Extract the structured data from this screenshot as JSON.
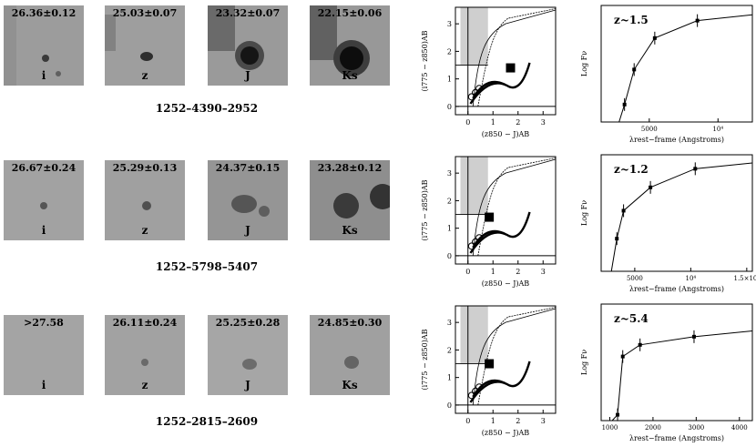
{
  "rows": [
    {
      "object_id": "1252–4390–2952",
      "stamps": [
        {
          "band": "i",
          "mag": "26.36±0.12"
        },
        {
          "band": "z",
          "mag": "25.03±0.07"
        },
        {
          "band": "J",
          "mag": "23.32±0.07"
        },
        {
          "band": "Ks",
          "mag": "22.15±0.06"
        }
      ],
      "cc": {
        "ylabel": "(i775 − z850)AB",
        "xlabel": "(z850 − J)AB",
        "xticks": [
          "0",
          "1",
          "2",
          "3"
        ],
        "yticks": [
          "0",
          "1",
          "2",
          "3"
        ]
      },
      "sed": {
        "label": "z~1.5",
        "ylabel": "Log Fν",
        "xlabel": "λrest−frame (Angstroms)",
        "xticks": [
          "5000",
          "10⁴"
        ]
      }
    },
    {
      "object_id": "1252–5798–5407",
      "stamps": [
        {
          "band": "i",
          "mag": "26.67±0.24"
        },
        {
          "band": "z",
          "mag": "25.29±0.13"
        },
        {
          "band": "J",
          "mag": "24.37±0.15"
        },
        {
          "band": "Ks",
          "mag": "23.28±0.12"
        }
      ],
      "cc": {
        "ylabel": "(i775 − z850)AB",
        "xlabel": "(z850 − J)AB",
        "xticks": [
          "0",
          "1",
          "2",
          "3"
        ],
        "yticks": [
          "0",
          "1",
          "2",
          "3"
        ]
      },
      "sed": {
        "label": "z~1.2",
        "ylabel": "Log Fν",
        "xlabel": "λrest−frame (Angstroms)",
        "xticks": [
          "5000",
          "10⁴",
          "1.5×10⁴"
        ]
      }
    },
    {
      "object_id": "1252–2815–2609",
      "stamps": [
        {
          "band": "i",
          "mag": ">27.58"
        },
        {
          "band": "z",
          "mag": "26.11±0.24"
        },
        {
          "band": "J",
          "mag": "25.25±0.28"
        },
        {
          "band": "Ks",
          "mag": "24.85±0.30"
        }
      ],
      "cc": {
        "ylabel": "(i775 − z850)AB",
        "xlabel": "(z850 − J)AB",
        "xticks": [
          "0",
          "1",
          "2",
          "3"
        ],
        "yticks": [
          "0",
          "1",
          "2",
          "3"
        ]
      },
      "sed": {
        "label": "z~5.4",
        "ylabel": "Log Fν",
        "xlabel": "λrest−frame (Angstroms)",
        "xticks": [
          "1000",
          "2000",
          "3000",
          "4000"
        ]
      }
    }
  ],
  "chart_data": [
    {
      "type": "scatter",
      "title": "",
      "xlabel": "(z850 − J)AB",
      "ylabel": "(i775 − z850)AB",
      "xlim": [
        -0.5,
        3.5
      ],
      "ylim": [
        -0.3,
        3.6
      ],
      "object": [
        1.7,
        1.4
      ]
    },
    {
      "type": "scatter",
      "title": "",
      "xlabel": "(z850 − J)AB",
      "ylabel": "(i775 − z850)AB",
      "xlim": [
        -0.5,
        3.5
      ],
      "ylim": [
        -0.3,
        3.6
      ],
      "object": [
        0.85,
        1.4
      ]
    },
    {
      "type": "scatter",
      "title": "",
      "xlabel": "(z850 − J)AB",
      "ylabel": "(i775 − z850)AB",
      "xlim": [
        -0.5,
        3.5
      ],
      "ylim": [
        -0.3,
        3.6
      ],
      "object": [
        0.85,
        1.5
      ]
    },
    {
      "type": "line",
      "annotation": "z~1.5",
      "xlabel": "λrest−frame (Angstroms)",
      "ylabel": "Log Fν",
      "xlim": [
        1500,
        12500
      ],
      "points": [
        [
          3200,
          0.15
        ],
        [
          3900,
          0.45
        ],
        [
          5400,
          0.72
        ],
        [
          8500,
          0.87
        ]
      ]
    },
    {
      "type": "line",
      "annotation": "z~1.2",
      "xlabel": "λrest−frame (Angstroms)",
      "ylabel": "Log Fν",
      "xlim": [
        2000,
        15500
      ],
      "points": [
        [
          3400,
          0.28
        ],
        [
          4000,
          0.52
        ],
        [
          6400,
          0.72
        ],
        [
          10400,
          0.88
        ]
      ]
    },
    {
      "type": "line",
      "annotation": "z~5.4",
      "xlabel": "λrest−frame (Angstroms)",
      "ylabel": "Log Fν",
      "xlim": [
        800,
        4300
      ],
      "points": [
        [
          1180,
          0.05
        ],
        [
          1300,
          0.55
        ],
        [
          1700,
          0.65
        ],
        [
          2950,
          0.72
        ]
      ]
    }
  ]
}
